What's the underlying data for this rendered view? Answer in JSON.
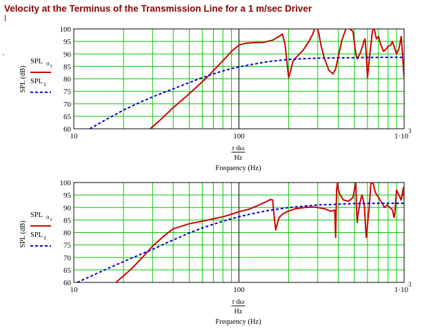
{
  "title": "Velocity at the Terminus of the Transmission Line for a 1 m/sec Driver",
  "colors": {
    "title": "#8b0000",
    "grid": "#00c800",
    "series_or": "#cc0000",
    "series_r": "#0000cc",
    "axis": "#000000"
  },
  "chart_data": [
    {
      "type": "line",
      "x_scale": "log",
      "xlim": [
        10,
        1000
      ],
      "ylim": [
        60,
        100
      ],
      "grid": true,
      "x_tick_labels": [
        "10",
        "100",
        "1·10",
        "3"
      ],
      "y_ticks": [
        60,
        65,
        70,
        75,
        80,
        85,
        90,
        95,
        100
      ],
      "ylabel": "SPL (dB)",
      "xlabel_top": "r dω",
      "xlabel_den": "Hz",
      "xlabel": "Frequency (Hz)",
      "legend": [
        {
          "name": "SPL",
          "sub": "o",
          "subsub": "r",
          "style": "solid"
        },
        {
          "name": "SPL",
          "sub": "r",
          "style": "dashed"
        }
      ],
      "series": [
        {
          "name": "SPL o r",
          "style": "solid",
          "x": [
            29,
            34,
            40,
            48,
            56,
            65,
            74,
            82,
            90,
            100,
            110,
            125,
            140,
            160,
            175,
            183,
            190,
            195,
            200,
            205,
            212,
            225,
            245,
            265,
            280,
            290,
            298,
            305,
            315,
            330,
            350,
            370,
            385,
            400,
            420,
            450,
            490,
            510,
            520,
            540,
            560,
            570,
            580,
            590,
            600,
            620,
            640,
            650,
            660,
            670,
            680,
            700,
            720,
            750,
            780,
            800,
            830,
            850,
            870,
            900,
            930,
            960,
            980,
            1000
          ],
          "y": [
            60,
            64,
            68.5,
            73,
            77,
            81,
            85,
            88,
            91,
            93.5,
            94.3,
            94.5,
            94.6,
            95.5,
            97,
            98,
            94,
            87,
            80.5,
            83,
            87,
            89,
            91.5,
            95,
            98,
            101,
            100.5,
            98,
            93,
            88,
            83.5,
            82,
            84,
            89,
            95.5,
            101,
            99,
            90,
            88,
            90,
            93,
            95,
            96,
            90,
            80.5,
            90,
            98,
            100.5,
            100,
            98,
            96,
            97,
            94,
            91,
            92,
            93,
            93.5,
            95,
            93,
            90,
            92,
            97,
            89,
            80
          ]
        },
        {
          "name": "SPL r",
          "style": "dashed",
          "x": [
            12.5,
            15,
            20,
            25,
            30,
            35,
            40,
            50,
            60,
            70,
            80,
            90,
            100,
            120,
            150,
            200,
            300,
            500,
            700,
            1000
          ],
          "y": [
            60,
            63,
            67.5,
            70.5,
            72.8,
            74.5,
            76,
            78.5,
            80.5,
            82,
            83.2,
            84.1,
            84.8,
            85.8,
            86.9,
            87.8,
            88.3,
            88.5,
            88.6,
            88.6
          ]
        }
      ]
    },
    {
      "type": "line",
      "x_scale": "log",
      "xlim": [
        10,
        1000
      ],
      "ylim": [
        60,
        100
      ],
      "grid": true,
      "x_tick_labels": [
        "10",
        "100",
        "1·10",
        "3"
      ],
      "y_ticks": [
        60,
        65,
        70,
        75,
        80,
        85,
        90,
        95,
        100
      ],
      "ylabel": "SPL (dB)",
      "xlabel_top": "r dω",
      "xlabel_den": "Hz",
      "xlabel": "Frequency (Hz)",
      "legend": [
        {
          "name": "SPL",
          "sub": "o",
          "subsub": "r",
          "style": "solid"
        },
        {
          "name": "SPL",
          "sub": "r",
          "style": "dashed"
        }
      ],
      "series": [
        {
          "name": "SPL o r",
          "style": "solid",
          "x": [
            18,
            22,
            26,
            30,
            35,
            40,
            45,
            50,
            60,
            70,
            80,
            90,
            100,
            115,
            130,
            145,
            155,
            160,
            163,
            167,
            170,
            175,
            185,
            200,
            220,
            250,
            280,
            300,
            330,
            360,
            380,
            385,
            390,
            395,
            400,
            410,
            430,
            460,
            490,
            510,
            515,
            520,
            525,
            535,
            545,
            555,
            565,
            575,
            580,
            590,
            600,
            615,
            630,
            650,
            670,
            700,
            730,
            760,
            790,
            820,
            850,
            870,
            880,
            900,
            930,
            960,
            990,
            1000
          ],
          "y": [
            60,
            65,
            70,
            74.5,
            78.5,
            81.5,
            82.5,
            83.5,
            84.5,
            85.5,
            86.3,
            87.3,
            88.3,
            89.3,
            90.8,
            92.2,
            93.2,
            93,
            87,
            81,
            83,
            86,
            87.5,
            88.6,
            89.5,
            90,
            90.2,
            90,
            89.5,
            88.5,
            89,
            78,
            97,
            100,
            97,
            95,
            93,
            92.5,
            94,
            100,
            90,
            84,
            87,
            90,
            93,
            95,
            93,
            91,
            86,
            78,
            83,
            90,
            100,
            99.5,
            96,
            94,
            92,
            90,
            91,
            90,
            89,
            86,
            88,
            97,
            95,
            93,
            98,
            93
          ]
        },
        {
          "name": "SPL r",
          "style": "dashed",
          "x": [
            10.5,
            12,
            15,
            18,
            22,
            27,
            30,
            35,
            40,
            50,
            60,
            70,
            80,
            90,
            100,
            120,
            150,
            200,
            300,
            500,
            700,
            1000
          ],
          "y": [
            60,
            61.8,
            64.7,
            67,
            69.5,
            72,
            73.2,
            75.3,
            77,
            79.8,
            81.8,
            83.3,
            84.5,
            85.5,
            86.3,
            87.5,
            88.8,
            90,
            91,
            91.6,
            91.7,
            91.7
          ]
        }
      ]
    }
  ]
}
